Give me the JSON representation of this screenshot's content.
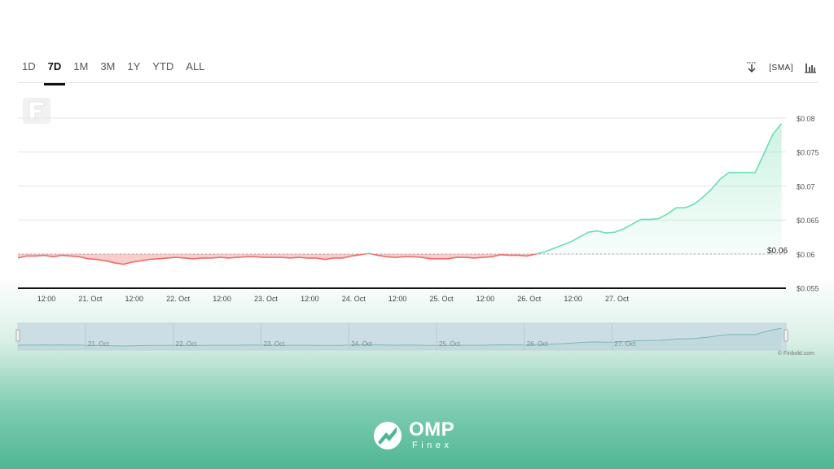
{
  "toolbar": {
    "ranges": [
      "1D",
      "7D",
      "1M",
      "3M",
      "1Y",
      "YTD",
      "ALL"
    ],
    "active_range": "7D",
    "sma_label": "SMA",
    "download_icon": "download-icon",
    "chart_type_icon": "chart-type-icon"
  },
  "chart_data": {
    "type": "line",
    "series": [
      {
        "x": [
          0,
          2,
          4,
          6,
          8,
          10,
          12,
          14,
          16,
          18,
          20,
          22,
          24,
          26,
          28,
          30,
          32,
          34,
          36,
          38,
          40,
          42,
          44,
          46,
          48,
          50,
          52,
          54,
          56,
          58,
          60,
          62,
          64,
          66,
          68,
          70,
          72,
          74,
          76,
          78,
          80,
          82,
          84,
          86,
          88,
          90,
          92,
          94,
          96,
          98,
          100,
          102,
          104,
          106,
          108,
          110,
          112,
          114,
          116,
          118,
          120,
          122,
          124,
          126,
          128,
          130,
          132,
          134,
          136,
          138,
          140,
          142,
          144,
          146,
          148,
          150,
          152,
          154,
          156,
          158,
          160,
          162,
          164,
          166,
          168,
          170,
          172,
          174
        ],
        "y": [
          0.0594,
          0.0597,
          0.0597,
          0.0598,
          0.0596,
          0.0598,
          0.0597,
          0.0596,
          0.0593,
          0.0592,
          0.059,
          0.0587,
          0.0585,
          0.0588,
          0.059,
          0.0592,
          0.0593,
          0.0594,
          0.0595,
          0.0594,
          0.0593,
          0.0594,
          0.0594,
          0.0595,
          0.0594,
          0.0595,
          0.0596,
          0.0596,
          0.0595,
          0.0595,
          0.0595,
          0.0594,
          0.0595,
          0.0594,
          0.0594,
          0.0592,
          0.0594,
          0.0594,
          0.0597,
          0.0599,
          0.0601,
          0.0598,
          0.0596,
          0.0595,
          0.0596,
          0.0596,
          0.0595,
          0.0593,
          0.0593,
          0.0593,
          0.0595,
          0.0595,
          0.0594,
          0.0595,
          0.0596,
          0.0599,
          0.0598,
          0.0598,
          0.0597,
          0.06,
          0.0603,
          0.0608,
          0.0613,
          0.0618,
          0.0625,
          0.0632,
          0.0634,
          0.0631,
          0.0632,
          0.0637,
          0.0644,
          0.0651,
          0.0651,
          0.0652,
          0.0659,
          0.0668,
          0.0668,
          0.0673,
          0.0683,
          0.0695,
          0.071,
          0.072,
          0.072,
          0.072,
          0.072,
          0.0748,
          0.0776,
          0.0792
        ],
        "color_up": "#6dddb0",
        "color_down": "#ef6b6b"
      }
    ],
    "baseline": 0.06,
    "baseline_label": "$0.06",
    "xlim": [
      0,
      175
    ],
    "ylim": [
      0.0552,
      0.0812
    ],
    "x_ticks": [
      {
        "label": "12:00",
        "pos": 6.5
      },
      {
        "label": "21. Oct",
        "pos": 16.5
      },
      {
        "label": "12:00",
        "pos": 26.5
      },
      {
        "label": "22. Oct",
        "pos": 36.5
      },
      {
        "label": "12:00",
        "pos": 46.5
      },
      {
        "label": "23. Oct",
        "pos": 56.5
      },
      {
        "label": "12:00",
        "pos": 66.5
      },
      {
        "label": "24. Oct",
        "pos": 76.5
      },
      {
        "label": "12:00",
        "pos": 86.5
      },
      {
        "label": "25. Oct",
        "pos": 96.5
      },
      {
        "label": "12:00",
        "pos": 106.5
      },
      {
        "label": "26. Oct",
        "pos": 116.5
      },
      {
        "label": "12:00",
        "pos": 126.5
      },
      {
        "label": "27. Oct",
        "pos": 136.5
      }
    ],
    "y_ticks": [
      {
        "label": "$0.055",
        "value": 0.055
      },
      {
        "label": "$0.06",
        "value": 0.06
      },
      {
        "label": "$0.065",
        "value": 0.065
      },
      {
        "label": "$0.07",
        "value": 0.07
      },
      {
        "label": "$0.075",
        "value": 0.075
      },
      {
        "label": "$0.08",
        "value": 0.08
      }
    ],
    "navigator_labels": [
      "21. Oct",
      "22. Oct",
      "23. Oct",
      "24. Oct",
      "25. Oct",
      "26. Oct",
      "27. Oct"
    ],
    "grid": true
  },
  "credit": "© Finbold.com",
  "footer": {
    "brand_name": "OMP",
    "brand_sub": "Finex"
  }
}
